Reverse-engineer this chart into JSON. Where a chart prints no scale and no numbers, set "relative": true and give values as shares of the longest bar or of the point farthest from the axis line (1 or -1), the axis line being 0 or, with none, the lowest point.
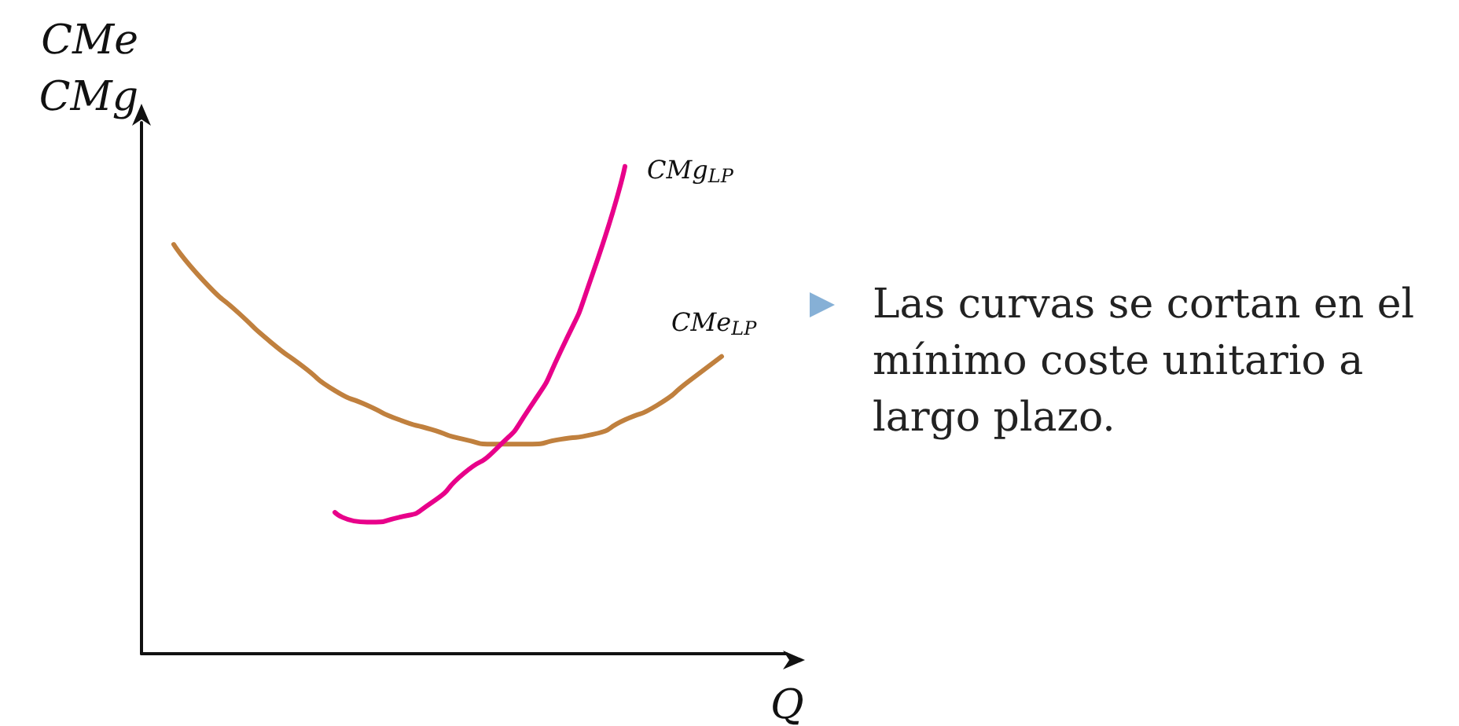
{
  "chart_data": {
    "type": "line",
    "relative": true,
    "xlabel": "Q",
    "ylabel": "CMe\nCMg",
    "categories": [
      null,
      null,
      null,
      null,
      null,
      null,
      null,
      null,
      null,
      null,
      null,
      null,
      null,
      null,
      null,
      null,
      null,
      null,
      null,
      null,
      null
    ],
    "series": [
      {
        "name": "CMe$_{LP}$",
        "color": "#c0803e",
        "values": [
          null,
          0.84,
          0.76,
          0.7,
          0.64,
          0.59,
          0.54,
          0.51,
          0.48,
          0.46,
          0.44,
          0.43,
          0.43,
          0.44,
          0.45,
          0.48,
          0.51,
          0.56,
          0.61,
          null,
          null
        ]
      },
      {
        "name": "CMg$_{LP}$",
        "color": "#e8008a",
        "values": [
          null,
          null,
          null,
          null,
          null,
          null,
          0.29,
          0.27,
          0.28,
          0.31,
          0.37,
          0.42,
          0.5,
          0.62,
          0.78,
          1,
          null,
          null,
          null,
          null,
          null
        ]
      }
    ],
    "annotations": [
      "Las curvas se cortan en el mínimo coste unitario a largo plazo."
    ],
    "legend": false,
    "grid": false,
    "marker": "none",
    "line_style": "solid"
  }
}
